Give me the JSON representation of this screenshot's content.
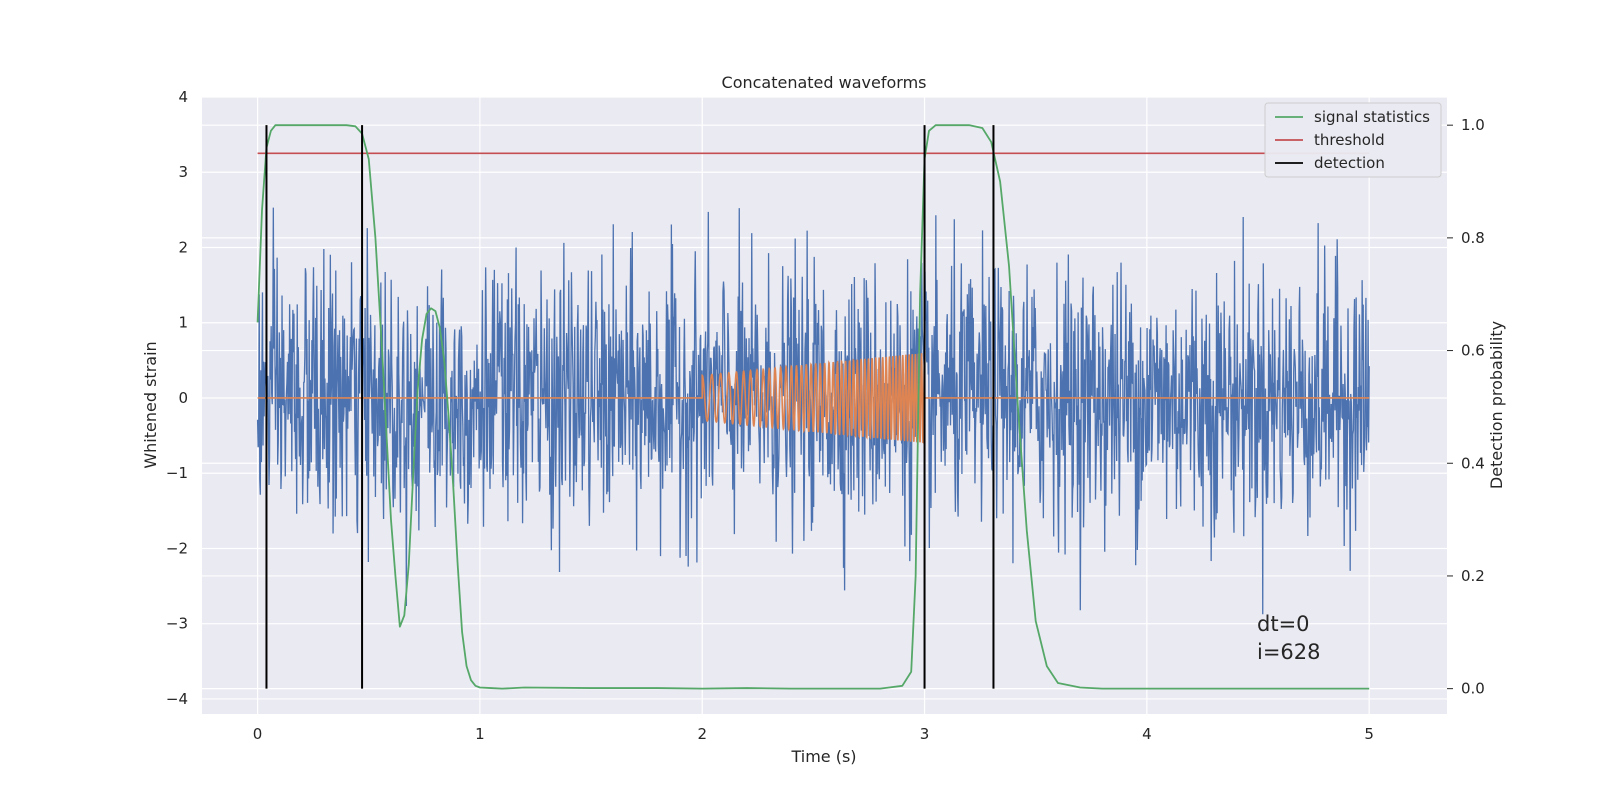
{
  "chart_data": {
    "type": "line",
    "title": "Concatenated waveforms",
    "xlabel": "Time (s)",
    "ylabel": "Whitened strain",
    "y2label": "Detection probability",
    "xlim": [
      -0.25,
      5.35
    ],
    "ylim": [
      -4.2,
      4.0
    ],
    "y2lim": [
      -0.045,
      1.05
    ],
    "xticks": [
      0,
      1,
      2,
      3,
      4,
      5
    ],
    "yticks": [
      -4,
      -3,
      -2,
      -1,
      0,
      1,
      2,
      3,
      4
    ],
    "y2ticks": [
      0.0,
      0.2,
      0.4,
      0.6,
      0.8,
      1.0
    ],
    "xtick_labels": [
      "0",
      "1",
      "2",
      "3",
      "4",
      "5"
    ],
    "ytick_labels": [
      "−4",
      "−3",
      "−2",
      "−1",
      "0",
      "1",
      "2",
      "3",
      "4"
    ],
    "y2tick_labels": [
      "0.0",
      "0.2",
      "0.4",
      "0.6",
      "0.8",
      "1.0"
    ],
    "grid": true,
    "legend_position": "top-right",
    "colors": {
      "background": "#eaeaf2",
      "grid": "#ffffff",
      "strain": "#4c72b0",
      "injection": "#dd8452",
      "signal_statistics": "#55a868",
      "threshold": "#c44e52",
      "detection": "#000000"
    },
    "series": [
      {
        "name": "strain",
        "axis": "left",
        "kind": "noise",
        "x_range": [
          0,
          5
        ],
        "typical_amplitude": 0.85,
        "peak_amplitude": 3.6,
        "samples": 2048
      },
      {
        "name": "injection",
        "axis": "left",
        "kind": "chirp",
        "x_range": [
          0,
          5
        ],
        "chirp_start": 2.0,
        "chirp_end": 3.0,
        "amplitude_start": 0.3,
        "amplitude_end": 0.6
      },
      {
        "name": "signal statistics",
        "axis": "right",
        "x": [
          0.0,
          0.02,
          0.04,
          0.06,
          0.08,
          0.1,
          0.15,
          0.2,
          0.3,
          0.4,
          0.44,
          0.47,
          0.5,
          0.53,
          0.56,
          0.58,
          0.6,
          0.62,
          0.64,
          0.66,
          0.68,
          0.7,
          0.72,
          0.74,
          0.76,
          0.78,
          0.8,
          0.82,
          0.84,
          0.86,
          0.88,
          0.9,
          0.92,
          0.94,
          0.96,
          0.98,
          1.0,
          1.05,
          1.1,
          1.2,
          1.5,
          1.8,
          2.0,
          2.2,
          2.4,
          2.6,
          2.8,
          2.9,
          2.94,
          2.96,
          2.98,
          3.0,
          3.02,
          3.05,
          3.1,
          3.2,
          3.26,
          3.3,
          3.34,
          3.38,
          3.42,
          3.46,
          3.5,
          3.55,
          3.6,
          3.7,
          3.8,
          4.0,
          4.5,
          5.0
        ],
        "values": [
          0.65,
          0.85,
          0.96,
          0.99,
          1.0,
          1.0,
          1.0,
          1.0,
          1.0,
          1.0,
          0.998,
          0.985,
          0.94,
          0.8,
          0.6,
          0.45,
          0.3,
          0.2,
          0.11,
          0.13,
          0.22,
          0.38,
          0.53,
          0.62,
          0.665,
          0.675,
          0.67,
          0.64,
          0.58,
          0.48,
          0.36,
          0.22,
          0.1,
          0.04,
          0.015,
          0.005,
          0.002,
          0.001,
          0.0,
          0.002,
          0.001,
          0.001,
          0.0,
          0.001,
          0.0,
          0.0,
          0.0,
          0.005,
          0.03,
          0.2,
          0.7,
          0.94,
          0.99,
          1.0,
          1.0,
          1.0,
          0.995,
          0.97,
          0.9,
          0.75,
          0.5,
          0.28,
          0.12,
          0.04,
          0.01,
          0.002,
          0.0,
          0.0,
          0.0,
          0.0
        ]
      },
      {
        "name": "threshold",
        "axis": "right",
        "x": [
          0,
          5
        ],
        "values": [
          0.95,
          0.95
        ]
      },
      {
        "name": "detection",
        "axis": "right",
        "kind": "vlines",
        "x": [
          0.04,
          0.47,
          3.0,
          3.31
        ],
        "ymin": 0.0,
        "ymax": 1.0
      }
    ],
    "legend": [
      "signal statistics",
      "threshold",
      "detection"
    ],
    "annotations": [
      "dt=0",
      "i=628"
    ]
  }
}
